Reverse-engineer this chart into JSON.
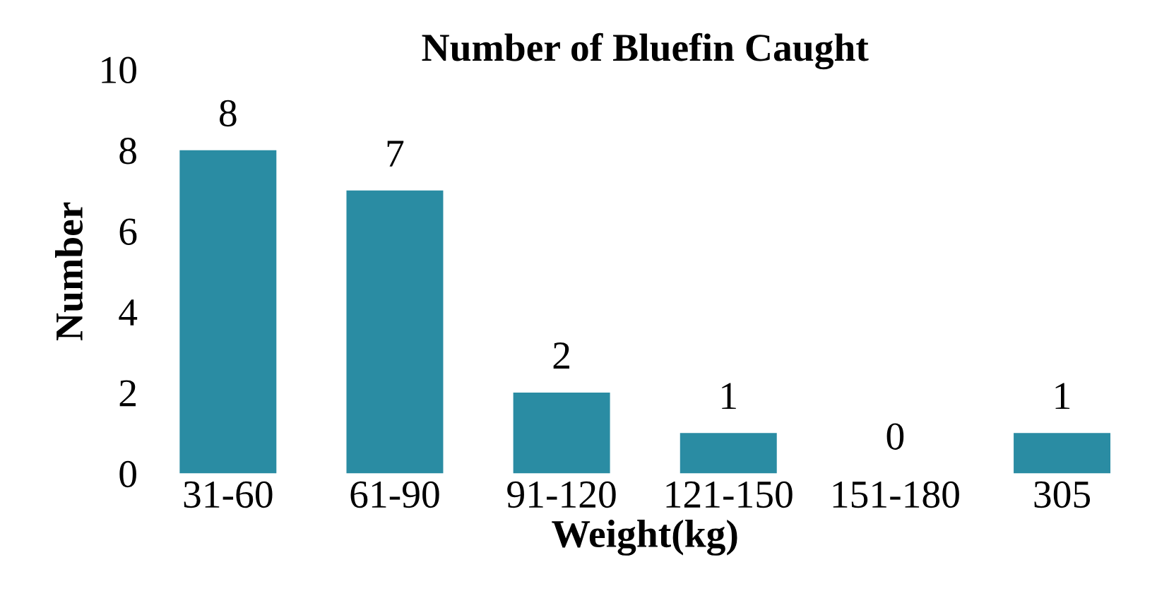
{
  "chart_data": {
    "type": "bar",
    "title": "Number of Bluefin Caught",
    "xlabel": "Weight(kg)",
    "ylabel": "Number",
    "categories": [
      "31-60",
      "61-90",
      "91-120",
      "121-150",
      "151-180",
      "305"
    ],
    "values": [
      8,
      7,
      2,
      1,
      0,
      1
    ],
    "color": "#2a8ca3",
    "ylim": [
      0,
      10
    ],
    "yticks": [
      0,
      2,
      4,
      6,
      8,
      10
    ],
    "grid": false,
    "data_labels": true
  }
}
